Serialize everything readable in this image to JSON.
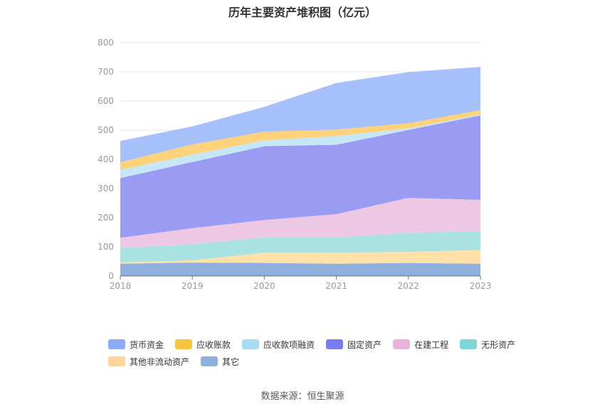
{
  "chart_data": {
    "type": "area",
    "stacked": true,
    "title": "历年主要资产堆积图（亿元）",
    "x": [
      "2018",
      "2019",
      "2020",
      "2021",
      "2022",
      "2023"
    ],
    "ylim": [
      0,
      800
    ],
    "yticks": [
      "0",
      "100",
      "200",
      "300",
      "400",
      "500",
      "600",
      "700",
      "800"
    ],
    "grid": true,
    "legend_position": "bottom",
    "series": [
      {
        "name": "其它",
        "color": "#8fb0dc",
        "values": [
          42,
          46,
          45,
          42,
          45,
          42
        ]
      },
      {
        "name": "其他非流动资产",
        "color": "#ffe0a8",
        "values": [
          5,
          8,
          35,
          38,
          38,
          47
        ]
      },
      {
        "name": "无形资产",
        "color": "#a8e2e3",
        "values": [
          49,
          55,
          52,
          52,
          65,
          65
        ]
      },
      {
        "name": "在建工程",
        "color": "#ecc8e4",
        "values": [
          35,
          55,
          60,
          80,
          120,
          107
        ]
      },
      {
        "name": "固定资产",
        "color": "#9a9cf3",
        "values": [
          205,
          227,
          253,
          238,
          233,
          290
        ]
      },
      {
        "name": "应收款项融资",
        "color": "#c6e8f6",
        "values": [
          28,
          25,
          20,
          30,
          5,
          3
        ]
      },
      {
        "name": "应收账款",
        "color": "#fdd27a",
        "values": [
          26,
          35,
          30,
          22,
          18,
          15
        ]
      },
      {
        "name": "货币资金",
        "color": "#a5c0fa",
        "values": [
          73,
          62,
          85,
          160,
          175,
          148
        ]
      }
    ]
  },
  "legend": {
    "row1": [
      {
        "label": "货币资金",
        "color": "#8caaf6"
      },
      {
        "label": "应收账款",
        "color": "#fac342"
      },
      {
        "label": "应收款项融资",
        "color": "#a8daf4"
      },
      {
        "label": "固定资产",
        "color": "#7a7df0"
      },
      {
        "label": "在建工程",
        "color": "#e8b4dc"
      },
      {
        "label": "无形资产",
        "color": "#7fd6d6"
      }
    ],
    "row2": [
      {
        "label": "其他非流动资产",
        "color": "#fdd49c"
      },
      {
        "label": "其它",
        "color": "#8fafdc"
      }
    ]
  },
  "footer": {
    "source": "数据来源：恒生聚源"
  }
}
